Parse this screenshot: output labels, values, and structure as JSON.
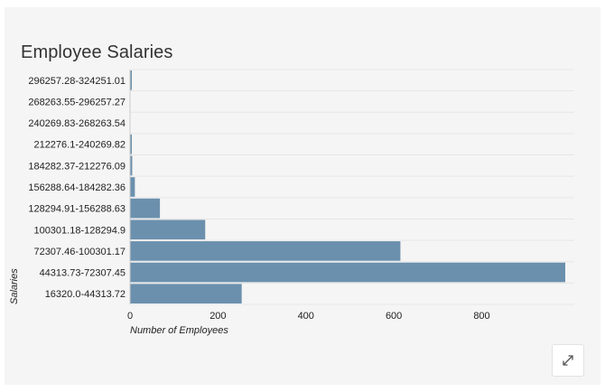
{
  "chart_data": {
    "type": "bar",
    "orientation": "horizontal",
    "title": "Employee Salaries",
    "xlabel": "Number of Employees",
    "ylabel": "Salaries",
    "xlim": [
      0,
      990
    ],
    "x_ticks": [
      0,
      200,
      400,
      600,
      800
    ],
    "bar_color": "#6b90ad",
    "grid": true,
    "categories": [
      "16320.0-44313.72",
      "44313.73-72307.45",
      "72307.46-100301.17",
      "100301.18-128294.9",
      "128294.91-156288.63",
      "156288.64-184282.36",
      "184282.37-212276.09",
      "212276.1-240269.82",
      "240269.83-268263.54",
      "268263.55-296257.27",
      "296257.28-324251.01"
    ],
    "values": [
      254,
      990,
      615,
      171,
      68,
      11,
      5,
      2,
      0,
      0,
      1
    ]
  },
  "controls": {
    "expand_icon": "expand-arrows-icon"
  }
}
